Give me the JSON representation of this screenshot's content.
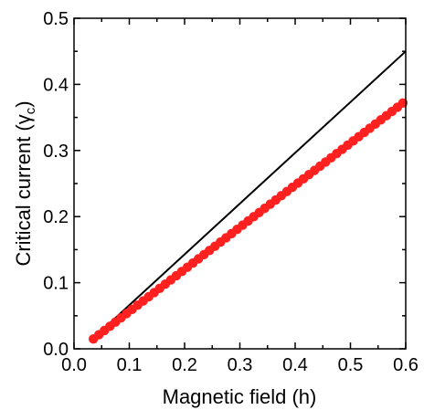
{
  "chart_data": {
    "type": "scatter",
    "title": "",
    "xlabel": "Magnetic field (h)",
    "ylabel_main": "Critical current (",
    "ylabel_symbol": "γ",
    "ylabel_sub": "c",
    "ylabel_close": ")",
    "xlim": [
      0.0,
      0.6
    ],
    "ylim": [
      0.0,
      0.5
    ],
    "xticks": [
      0.0,
      0.1,
      0.2,
      0.3,
      0.4,
      0.5,
      0.6
    ],
    "xtick_labels": [
      "0.0",
      "0.1",
      "0.2",
      "0.3",
      "0.4",
      "0.5",
      "0.6"
    ],
    "yticks": [
      0.0,
      0.1,
      0.2,
      0.3,
      0.4,
      0.5
    ],
    "ytick_labels": [
      "0.0",
      "0.1",
      "0.2",
      "0.3",
      "0.4",
      "0.5"
    ],
    "grid": false,
    "series": [
      {
        "kind": "line",
        "color": "#000000",
        "x": [
          0.04,
          0.6
        ],
        "y": [
          0.02,
          0.45
        ]
      },
      {
        "kind": "markers",
        "color": "#ff2020",
        "x_start": 0.035,
        "x_end": 0.6,
        "x_step": 0.01,
        "y_at_start": 0.015,
        "y_at_end": 0.375
      }
    ]
  }
}
